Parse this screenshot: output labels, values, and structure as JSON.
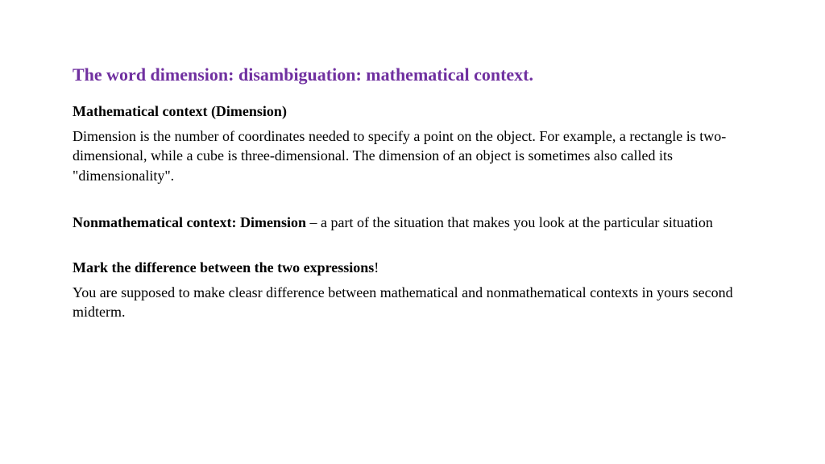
{
  "title": {
    "text": "The word dimension: disambiguation: mathematical context",
    "color": "#7030a0",
    "period_color": "#000000"
  },
  "section1": {
    "heading": "Mathematical context (Dimension)",
    "body": " Dimension is the number of coordinates needed to specify a point on the object. For example, a rectangle is two-dimensional, while a cube is three-dimensional. The dimension of an object is sometimes also called its \"dimensionality\"."
  },
  "section2": {
    "heading": "Nonmathematical context: Dimension",
    "body": " – a part of the situation that makes you look at the particular situation"
  },
  "section3": {
    "heading": "Mark the difference between the two expressions",
    "exclaim": "!",
    "body": "You are supposed to make cleasr difference between mathematical and nonmathematical contexts in yours second midterm."
  },
  "colors": {
    "title": "#7030a0",
    "text": "#000000",
    "background": "#ffffff"
  },
  "fonts": {
    "title_size": 22,
    "body_size": 18,
    "family": "Georgia, Times New Roman, serif"
  }
}
